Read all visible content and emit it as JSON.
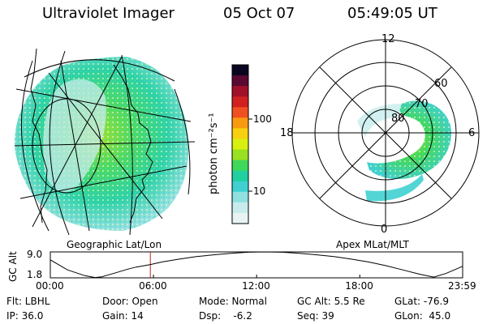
{
  "header": {
    "instrument": "Ultraviolet Imager",
    "date": "05 Oct 07",
    "time": "05:49:05 UT"
  },
  "panels": {
    "left_caption": "Geographic Lat/Lon",
    "right_caption": "Apex MLat/MLT",
    "right_clock": [
      "12",
      "18",
      "6",
      "0"
    ],
    "right_lat": [
      "60",
      "70",
      "80"
    ]
  },
  "colorbar": {
    "axis_label": "photon cm⁻²s⁻¹",
    "ticks": [
      "100",
      "10"
    ],
    "colors": [
      "#0b0620",
      "#5a0a30",
      "#a0102a",
      "#d02020",
      "#f05020",
      "#f89a10",
      "#f8d010",
      "#d8f010",
      "#98e020",
      "#40d858",
      "#20d0a0",
      "#40d0d0",
      "#90e0e0",
      "#c8ecec",
      "#e8f4f4"
    ]
  },
  "chart_data": {
    "type": "line",
    "title": "",
    "ylabel": "GC Alt",
    "yticks": [
      "9.0",
      "1.8"
    ],
    "ylim": [
      1.8,
      9.0
    ],
    "xticks": [
      "00:00",
      "06:00",
      "12:00",
      "18:00",
      "23:59"
    ],
    "xlim_hours": [
      0,
      23.983
    ],
    "marker_hour": 5.818,
    "series": [
      {
        "name": "GC Alt (Re)",
        "x": [
          0,
          1,
          2,
          2.6,
          3,
          3.8,
          4.5,
          5,
          5.82,
          6.5,
          7.5,
          8.5,
          9.5,
          10.5,
          11.5,
          12.5,
          13.5,
          14.5,
          15.5,
          16.5,
          17.5,
          18.5,
          19.5,
          20.5,
          21.5,
          22.3,
          23,
          23.98
        ],
        "values": [
          6.8,
          4.0,
          2.4,
          1.9,
          2.1,
          3.2,
          4.2,
          4.8,
          5.5,
          6.2,
          7.0,
          7.7,
          8.2,
          8.6,
          8.9,
          9.0,
          8.9,
          8.6,
          8.2,
          7.7,
          7.0,
          6.2,
          5.2,
          4.0,
          2.8,
          2.0,
          3.0,
          5.0
        ]
      }
    ],
    "marker_color": "#c02020"
  },
  "footer": {
    "flt": "Flt: LBHL",
    "ip": "IP: 36.0",
    "door": "Door: Open",
    "gain": "Gain: 14",
    "mode": "Mode: Normal",
    "dsp": "Dsp:    -6.2",
    "gcalt": "GC Alt: 5.5 Re",
    "seq": "Seq: 39",
    "glat": "GLat: -76.9",
    "glon": "GLon:  45.0"
  }
}
